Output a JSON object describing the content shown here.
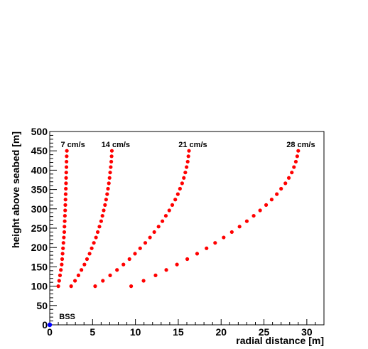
{
  "chart_data": {
    "type": "scatter",
    "title": "",
    "xlabel": "radial distance [m]",
    "ylabel": "height above seabed [m]",
    "xlim": [
      0,
      32
    ],
    "ylim": [
      0,
      500
    ],
    "x_ticks": [
      0,
      5,
      10,
      15,
      20,
      25,
      30
    ],
    "y_ticks": [
      0,
      50,
      100,
      150,
      200,
      250,
      300,
      350,
      400,
      450,
      500
    ],
    "grid": false,
    "legend": "none",
    "marker_color": "#ff0000",
    "annotations": [
      {
        "text": "7 cm/s",
        "x": 2.7,
        "y": 460
      },
      {
        "text": "14 cm/s",
        "x": 7.7,
        "y": 460
      },
      {
        "text": "21 cm/s",
        "x": 16.7,
        "y": 460
      },
      {
        "text": "28 cm/s",
        "x": 29.3,
        "y": 460
      }
    ],
    "bss_marker": {
      "label": "BSS",
      "x": 0,
      "y": 0,
      "label_x": 1.1,
      "label_y": 22,
      "color": "#0000ff"
    },
    "series": [
      {
        "label": "7 cm/s",
        "x": [
          1.0,
          1.1,
          1.2,
          1.3,
          1.4,
          1.45,
          1.5,
          1.55,
          1.6,
          1.65,
          1.7,
          1.72,
          1.75,
          1.77,
          1.8,
          1.82,
          1.84,
          1.86,
          1.88,
          1.9,
          1.91,
          1.93,
          1.95,
          1.96,
          1.98,
          2.0
        ],
        "y": [
          100,
          114,
          128,
          142,
          156,
          170,
          184,
          198,
          212,
          226,
          240,
          254,
          268,
          282,
          296,
          310,
          324,
          338,
          352,
          366,
          380,
          394,
          408,
          422,
          436,
          450
        ]
      },
      {
        "label": "14 cm/s",
        "x": [
          2.5,
          2.95,
          3.35,
          3.7,
          4.05,
          4.35,
          4.65,
          4.9,
          5.15,
          5.4,
          5.6,
          5.8,
          6.0,
          6.15,
          6.3,
          6.45,
          6.58,
          6.7,
          6.8,
          6.9,
          6.98,
          7.05,
          7.12,
          7.18,
          7.22,
          7.25
        ],
        "y": [
          100,
          114,
          128,
          142,
          156,
          170,
          184,
          198,
          212,
          226,
          240,
          254,
          268,
          282,
          296,
          310,
          324,
          338,
          352,
          366,
          380,
          394,
          408,
          422,
          436,
          450
        ]
      },
      {
        "label": "21 cm/s",
        "x": [
          5.3,
          6.2,
          7.05,
          7.85,
          8.6,
          9.3,
          9.95,
          10.55,
          11.15,
          11.7,
          12.2,
          12.7,
          13.15,
          13.55,
          13.95,
          14.3,
          14.65,
          14.95,
          15.2,
          15.45,
          15.65,
          15.82,
          15.97,
          16.1,
          16.18,
          16.25
        ],
        "y": [
          100,
          114,
          128,
          142,
          156,
          170,
          184,
          198,
          212,
          226,
          240,
          254,
          268,
          282,
          296,
          310,
          324,
          338,
          352,
          366,
          380,
          394,
          408,
          422,
          436,
          450
        ]
      },
      {
        "label": "28 cm/s",
        "x": [
          9.5,
          10.95,
          12.35,
          13.6,
          14.85,
          16.05,
          17.2,
          18.3,
          19.3,
          20.3,
          21.25,
          22.15,
          23.0,
          23.8,
          24.55,
          25.25,
          25.9,
          26.5,
          27.0,
          27.5,
          27.9,
          28.25,
          28.5,
          28.72,
          28.88,
          29.0
        ],
        "y": [
          100,
          114,
          128,
          142,
          156,
          170,
          184,
          198,
          212,
          226,
          240,
          254,
          268,
          282,
          296,
          310,
          324,
          338,
          352,
          366,
          380,
          394,
          408,
          422,
          436,
          450
        ]
      }
    ]
  }
}
